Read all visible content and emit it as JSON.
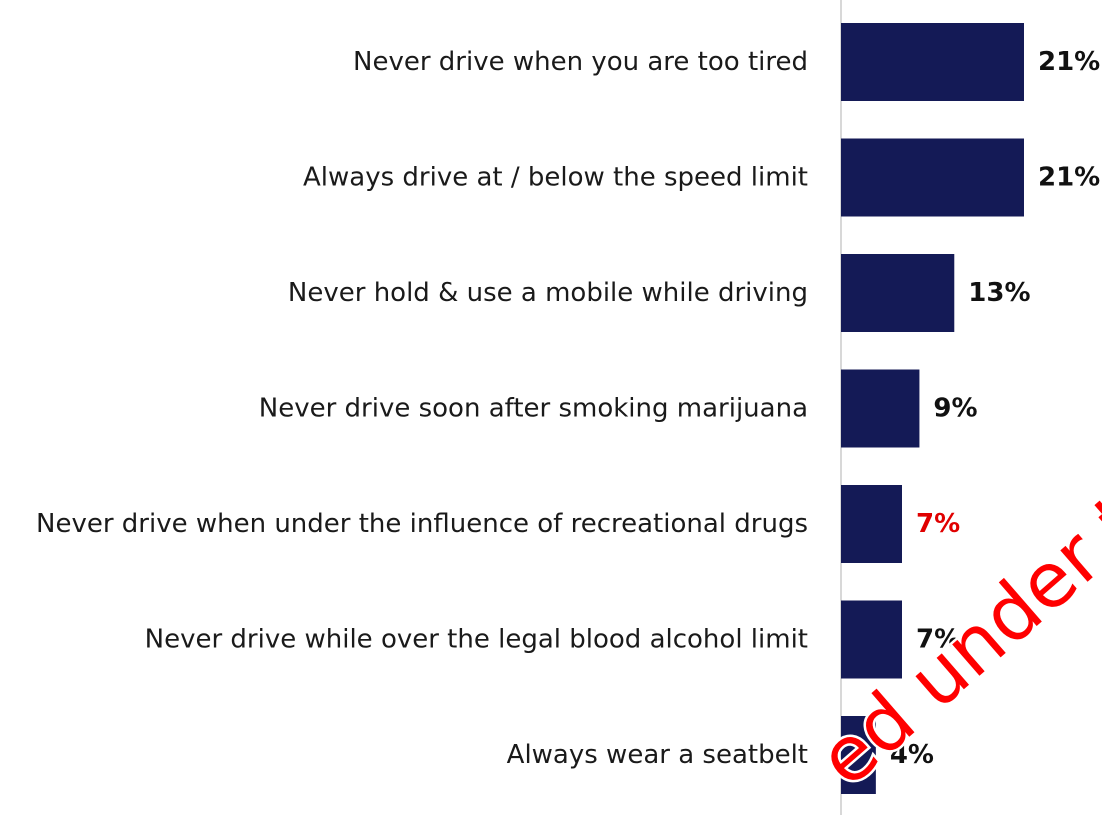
{
  "chart_data": {
    "type": "bar",
    "orientation": "horizontal",
    "categories": [
      "Never drive when you are too tired",
      "Always drive at / below the speed limit",
      "Never hold & use a mobile while driving",
      "Never drive soon after smoking marijuana",
      "Never drive when under the influence of recreational drugs",
      "Never drive while over the legal blood alcohol limit",
      "Always wear a seatbelt"
    ],
    "values": [
      21,
      21,
      13,
      9,
      7,
      7,
      4
    ],
    "value_labels": [
      "21%",
      "21%",
      "13%",
      "9%",
      "7%",
      "7%",
      "4%"
    ],
    "highlight_index": 4,
    "xlim": [
      0,
      21
    ],
    "bar_color": "#141a56",
    "label_color": "#111111",
    "highlight_color": "#e00000",
    "grid": false,
    "title": "",
    "xlabel": "",
    "ylabel": ""
  },
  "watermark": {
    "text": "ed under the",
    "color": "#ff0000"
  }
}
